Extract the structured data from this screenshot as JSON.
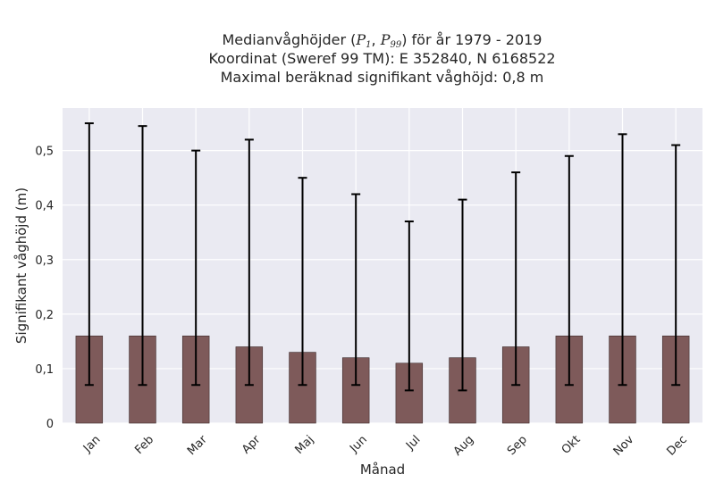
{
  "chart_data": {
    "type": "bar",
    "title": {
      "prefix": "Medianvåghöjder (",
      "p1_base": "P",
      "p1_sub": "1",
      "separator": ", ",
      "p99_base": "P",
      "p99_sub": "99",
      "suffix": ") för år 1979 - 2019",
      "line2": "Koordinat (Sweref 99 TM): E 352840, N 6168522",
      "line3": "Maximal beräknad signifikant våghöjd: 0,8 m"
    },
    "xlabel": "Månad",
    "ylabel": "Signifikant våghöjd (m)",
    "categories": [
      "Jan",
      "Feb",
      "Mar",
      "Apr",
      "Maj",
      "Jun",
      "Jul",
      "Aug",
      "Sep",
      "Okt",
      "Nov",
      "Dec"
    ],
    "values": [
      0.16,
      0.16,
      0.16,
      0.14,
      0.13,
      0.12,
      0.11,
      0.12,
      0.14,
      0.16,
      0.16,
      0.16
    ],
    "error_low": [
      0.07,
      0.07,
      0.07,
      0.07,
      0.07,
      0.07,
      0.06,
      0.06,
      0.07,
      0.07,
      0.07,
      0.07
    ],
    "error_high": [
      0.55,
      0.545,
      0.5,
      0.52,
      0.45,
      0.42,
      0.37,
      0.41,
      0.46,
      0.49,
      0.53,
      0.51
    ],
    "yticks": [
      0,
      0.1,
      0.2,
      0.3,
      0.4,
      0.5
    ],
    "ytick_labels": [
      "0",
      "0,1",
      "0,2",
      "0,3",
      "0,4",
      "0,5"
    ],
    "ylim": [
      0,
      0.578
    ],
    "grid": true,
    "colors": {
      "bar": "#7e5a5a",
      "bar_edge": "#3c2a2a",
      "error": "#000000",
      "background": "#eaeaf2",
      "grid": "#ffffff"
    }
  }
}
